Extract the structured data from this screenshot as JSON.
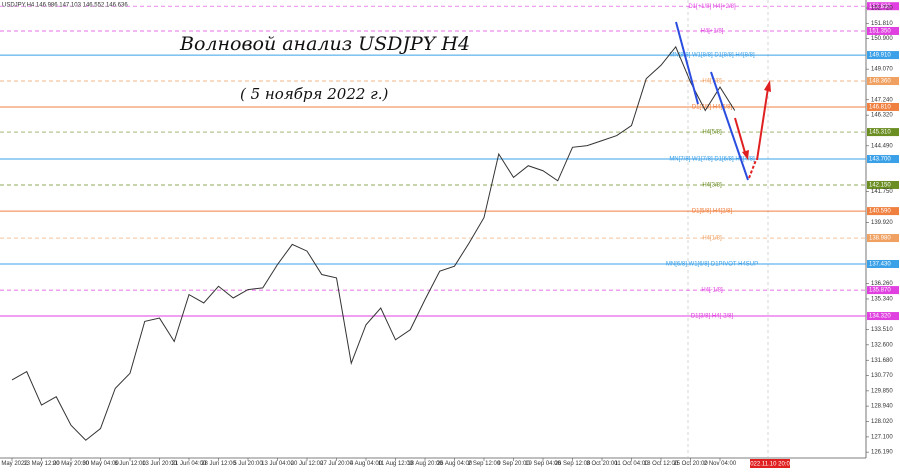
{
  "chart_data": {
    "type": "line",
    "header": "USDJPY,H4  146.986 147.103 146.552 146.636",
    "title": "Волновой анализ USDJPY H4",
    "subtitle": "( 5 ноября 2022 г.)",
    "cursor_time": "2022.11.10 20:00",
    "categories": [
      "6 May 2022",
      null,
      "13 May 12:00",
      null,
      "20 May 20:00",
      null,
      "30 May 04:00",
      null,
      "6 Jun 12:00",
      null,
      "13 Jun 20:00",
      null,
      "21 Jun 04:00",
      null,
      "28 Jun 12:00",
      null,
      "5 Jul 20:00",
      null,
      "13 Jul 04:00",
      null,
      "20 Jul 12:00",
      null,
      "27 Jul 20:00",
      null,
      "4 Aug 04:00",
      null,
      "11 Aug 12:00",
      null,
      "18 Aug 20:00",
      null,
      "26 Aug 04:00",
      null,
      "2 Sep 12:00",
      null,
      "9 Sep 20:00",
      null,
      "19 Sep 04:00",
      null,
      "26 Sep 12:00",
      null,
      "3 Oct 20:00",
      null,
      "11 Oct 04:00",
      null,
      "18 Oct 12:00",
      null,
      "25 Oct 20:00",
      null,
      "2 Nov 04:00",
      null
    ],
    "series": [
      {
        "name": "USDJPY,H4",
        "color": "#333333",
        "values": [
          130.5,
          131.0,
          129.0,
          129.5,
          127.8,
          126.9,
          127.6,
          130.0,
          130.9,
          134.0,
          134.2,
          132.8,
          135.6,
          135.1,
          136.1,
          135.4,
          135.9,
          136.0,
          137.4,
          138.6,
          138.2,
          136.8,
          136.6,
          131.5,
          133.8,
          134.8,
          132.9,
          133.5,
          135.3,
          137.0,
          137.3,
          138.7,
          140.2,
          144.0,
          142.6,
          143.3,
          143.0,
          142.4,
          144.4,
          144.5,
          144.8,
          145.1,
          145.7,
          148.5,
          149.3,
          150.4,
          148.3,
          146.6,
          148.0,
          146.6
        ]
      }
    ],
    "ylim": [
      125.84,
      153.2
    ],
    "yticks": [
      {
        "value": 126.19,
        "label": "126.190"
      },
      {
        "value": 127.1,
        "label": "127.100"
      },
      {
        "value": 128.02,
        "label": "128.020"
      },
      {
        "value": 128.94,
        "label": "128.940"
      },
      {
        "value": 129.85,
        "label": "129.850"
      },
      {
        "value": 130.77,
        "label": "130.770"
      },
      {
        "value": 131.68,
        "label": "131.680"
      },
      {
        "value": 132.6,
        "label": "132.600"
      },
      {
        "value": 133.51,
        "label": "133.510"
      },
      {
        "value": 135.34,
        "label": "135.340"
      },
      {
        "value": 136.26,
        "label": "136.260"
      },
      {
        "value": 139.92,
        "label": "139.920"
      },
      {
        "value": 141.75,
        "label": "141.750"
      },
      {
        "value": 144.49,
        "label": "144.490"
      },
      {
        "value": 146.32,
        "label": "146.320"
      },
      {
        "value": 147.24,
        "label": "147.240"
      },
      {
        "value": 149.07,
        "label": "149.070"
      },
      {
        "value": 150.9,
        "label": "150.900"
      },
      {
        "value": 151.81,
        "label": "151.810"
      },
      {
        "value": 152.72,
        "label": "152.720"
      }
    ],
    "levels": [
      {
        "text": "D1[+1/8] H4[+2/8]",
        "color": "#e040e0",
        "dash": true,
        "price": {
          "value": 152.83,
          "label": "152.830"
        }
      },
      {
        "text": "H4[+1/8]",
        "color": "#e040e0",
        "dash": true,
        "price": {
          "value": 151.35,
          "label": "151.350"
        }
      },
      {
        "text": "MN[8/8] W1[8/8] D1[8/8] H4[8/8]",
        "color": "#3aa0e8",
        "dash": false,
        "price": {
          "value": 149.91,
          "label": "149.910"
        }
      },
      {
        "text": "H4[7/8]",
        "color": "#f0a060",
        "dash": true,
        "price": {
          "value": 148.36,
          "label": "148.360"
        }
      },
      {
        "text": "D1[7/8] H4[6/8]",
        "color": "#f08040",
        "dash": false,
        "price": {
          "value": 146.81,
          "label": "146.810"
        }
      },
      {
        "text": "H4[5/8]",
        "color": "#6b8e23",
        "dash": true,
        "price": {
          "value": 145.31,
          "label": "145.310"
        }
      },
      {
        "text": "MN[7/8] W1[7/8] D1[6/8] H4[4/8]",
        "color": "#3aa0e8",
        "dash": false,
        "price": {
          "value": 143.7,
          "label": "143.700"
        }
      },
      {
        "text": "H4[3/8]",
        "color": "#6b8e23",
        "dash": true,
        "price": {
          "value": 142.15,
          "label": "142.150"
        }
      },
      {
        "text": "D1[5/8] H4[2/8]",
        "color": "#f08040",
        "dash": false,
        "price": {
          "value": 140.59,
          "label": "140.590"
        }
      },
      {
        "text": "H4[1/8]",
        "color": "#f0a060",
        "dash": true,
        "price": {
          "value": 138.98,
          "label": "138.980"
        }
      },
      {
        "text": "MN[6/8] W1[6/8] D1PIVOT H4SUP",
        "color": "#3aa0e8",
        "dash": false,
        "price": {
          "value": 137.43,
          "label": "137.430"
        }
      },
      {
        "text": "H4[-1/8]",
        "color": "#e040e0",
        "dash": true,
        "price": {
          "value": 135.87,
          "label": "135.870"
        }
      },
      {
        "text": "D1[3/8] H4[-2/8]",
        "color": "#e040e0",
        "dash": false,
        "price": {
          "value": 134.32,
          "label": "134.320"
        }
      }
    ]
  }
}
